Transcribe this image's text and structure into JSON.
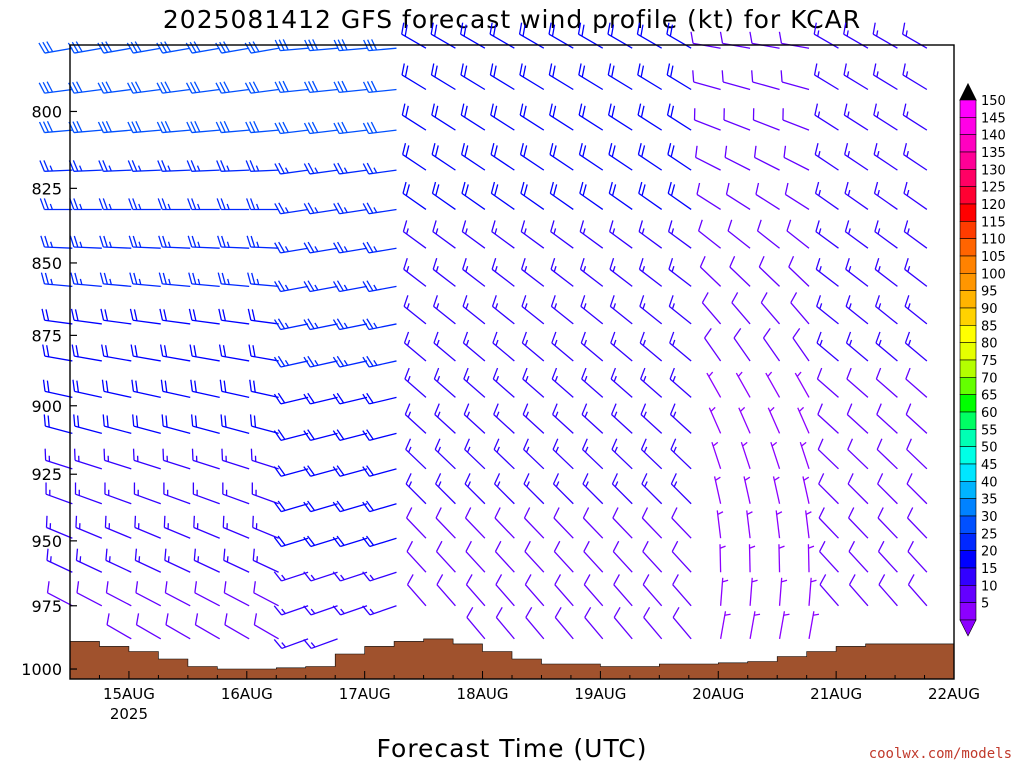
{
  "title": "2025081412 GFS forecast wind profile (kt) for KCAR",
  "credit": "coolwx.com/models",
  "chart_data": {
    "type": "wind-barb-profile",
    "title": "2025081412 GFS forecast wind profile (kt) for KCAR",
    "xlabel": "Forecast Time (UTC)",
    "ylabel": "",
    "x_ticks": [
      {
        "day": 15,
        "label": "15AUG",
        "sublabel": "2025"
      },
      {
        "day": 16,
        "label": "16AUG",
        "sublabel": ""
      },
      {
        "day": 17,
        "label": "17AUG",
        "sublabel": ""
      },
      {
        "day": 18,
        "label": "18AUG",
        "sublabel": ""
      },
      {
        "day": 19,
        "label": "19AUG",
        "sublabel": ""
      },
      {
        "day": 20,
        "label": "20AUG",
        "sublabel": ""
      },
      {
        "day": 21,
        "label": "21AUG",
        "sublabel": ""
      },
      {
        "day": 22,
        "label": "22AUG",
        "sublabel": ""
      }
    ],
    "xlim_days": [
      14.5,
      22.0
    ],
    "y_ticks": [
      800,
      825,
      850,
      875,
      900,
      925,
      950,
      975,
      1000
    ],
    "ylim_hpa": [
      779,
      1004
    ],
    "y_log_pressure": true,
    "barb_levels_hpa": [
      780,
      793,
      806,
      819,
      832,
      845,
      858,
      871,
      884,
      897,
      910,
      923,
      936,
      949,
      962,
      975,
      988
    ],
    "time_step_hours": 6,
    "surface_pressure_hpa": [
      {
        "day": 14.5,
        "p": 989
      },
      {
        "day": 14.75,
        "p": 991
      },
      {
        "day": 15.0,
        "p": 993
      },
      {
        "day": 15.25,
        "p": 996
      },
      {
        "day": 15.5,
        "p": 999
      },
      {
        "day": 15.75,
        "p": 1000
      },
      {
        "day": 16.0,
        "p": 1000
      },
      {
        "day": 16.25,
        "p": 999.5
      },
      {
        "day": 16.5,
        "p": 999
      },
      {
        "day": 16.75,
        "p": 994
      },
      {
        "day": 17.0,
        "p": 991
      },
      {
        "day": 17.25,
        "p": 989
      },
      {
        "day": 17.5,
        "p": 988
      },
      {
        "day": 17.75,
        "p": 990
      },
      {
        "day": 18.0,
        "p": 993
      },
      {
        "day": 18.25,
        "p": 996
      },
      {
        "day": 18.5,
        "p": 998
      },
      {
        "day": 18.75,
        "p": 998
      },
      {
        "day": 19.0,
        "p": 999
      },
      {
        "day": 19.25,
        "p": 999
      },
      {
        "day": 19.5,
        "p": 998
      },
      {
        "day": 19.75,
        "p": 998
      },
      {
        "day": 20.0,
        "p": 997.5
      },
      {
        "day": 20.25,
        "p": 997
      },
      {
        "day": 20.5,
        "p": 995
      },
      {
        "day": 20.75,
        "p": 993
      },
      {
        "day": 21.0,
        "p": 991
      },
      {
        "day": 21.25,
        "p": 990
      },
      {
        "day": 21.5,
        "p": 990
      },
      {
        "day": 21.75,
        "p": 990
      },
      {
        "day": 22.0,
        "p": 990
      }
    ],
    "wind_series_kt": [
      {
        "start": 14.5,
        "end": 16.5,
        "dir_upper": 260,
        "dir_lower": 300,
        "speed_upper": 30,
        "speed_lower": 10
      },
      {
        "start": 16.5,
        "end": 17.5,
        "dir_upper": 265,
        "dir_lower": 250,
        "speed_upper": 30,
        "speed_lower": 15
      },
      {
        "start": 17.5,
        "end": 20.0,
        "dir_upper": 300,
        "dir_lower": 320,
        "speed_upper": 20,
        "speed_lower": 10
      },
      {
        "start": 20.0,
        "end": 21.0,
        "dir_upper": 280,
        "dir_lower": 10,
        "speed_upper": 10,
        "speed_lower": 5
      },
      {
        "start": 21.0,
        "end": 22.0,
        "dir_upper": 300,
        "dir_lower": 320,
        "speed_upper": 15,
        "speed_lower": 10
      }
    ],
    "colorbar": {
      "labels": [
        150,
        145,
        140,
        135,
        130,
        125,
        120,
        115,
        110,
        105,
        100,
        95,
        90,
        85,
        80,
        75,
        70,
        65,
        60,
        55,
        50,
        45,
        40,
        35,
        30,
        25,
        20,
        15,
        10,
        5
      ],
      "colors": [
        "#ff00ff",
        "#ff00e6",
        "#ff00c0",
        "#ff0096",
        "#ff0064",
        "#ff0032",
        "#ff0000",
        "#ff3c00",
        "#ff6400",
        "#ff8200",
        "#ff9600",
        "#ffb400",
        "#ffd200",
        "#ffff00",
        "#e6ff00",
        "#b4ff00",
        "#64ff00",
        "#00ff00",
        "#00ff64",
        "#00ffb4",
        "#00ffe6",
        "#00e6ff",
        "#00b4ff",
        "#0082ff",
        "#0050ff",
        "#0028ff",
        "#0000ff",
        "#3200ff",
        "#6400ff",
        "#8c00ff"
      ]
    },
    "grid": false
  }
}
